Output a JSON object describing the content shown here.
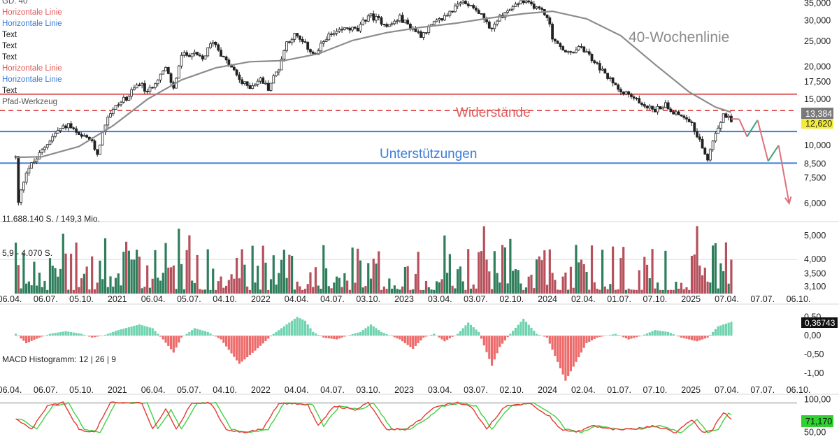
{
  "legend": [
    {
      "text": "GD: 40",
      "color": "#555555"
    },
    {
      "text": "Horizontale Linie",
      "color": "#e05a5a"
    },
    {
      "text": "Horizontale Linie",
      "color": "#3b7dd8"
    },
    {
      "text": "Text",
      "color": "#222222"
    },
    {
      "text": "Text",
      "color": "#222222"
    },
    {
      "text": "Text",
      "color": "#222222"
    },
    {
      "text": "Horizontale Linie",
      "color": "#e05a5a"
    },
    {
      "text": "Horizontale Linie",
      "color": "#3b7dd8"
    },
    {
      "text": "Text",
      "color": "#222222"
    },
    {
      "text": "Pfad-Werkzeug",
      "color": "#555555"
    }
  ],
  "annotations": {
    "ma_label": "40-Wochenlinie",
    "resistance_label": "Widerstände",
    "support_label": "Unterstützungen"
  },
  "colors": {
    "up": "#2e7d5b",
    "down": "#b5505c",
    "ma": "#8c8c8c",
    "resistance": "#e05a5a",
    "support": "#3b7dd8",
    "macd_pos": "#6fd3b0",
    "macd_neg": "#ee6b6b",
    "stoch_k": "#e53935",
    "stoch_d": "#43d143",
    "path_up": "#3aa57a",
    "path_down": "#e0707a",
    "price_badge_ma": "#7a7a7a",
    "price_badge_last": "#f4ea3a",
    "stoch_badge": "#2fd02f"
  },
  "axis_labels": {
    "time": [
      "06.04.",
      "06.07.",
      "05.10.",
      "2021",
      "06.04.",
      "05.07.",
      "04.10.",
      "2022",
      "04.04.",
      "04.07.",
      "03.10.",
      "2023",
      "03.04.",
      "03.07.",
      "02.10.",
      "2024",
      "02.04.",
      "01.07.",
      "07.10.",
      "2025",
      "07.04.",
      "07.07.",
      "06.10."
    ]
  },
  "chart_data": [
    {
      "type": "candlestick",
      "panel": "price",
      "scale": "log",
      "ylim": [
        5500,
        36000
      ],
      "y_ticks": [
        "35,000",
        "30,000",
        "25,000",
        "20,000",
        "17,500",
        "15,000",
        "12,500",
        "10,000",
        "8,500",
        "7,500",
        "6,000"
      ],
      "y_tick_values": [
        35000,
        30000,
        25000,
        20000,
        17500,
        15000,
        12500,
        10000,
        8500,
        7500,
        6000
      ],
      "price_labels": {
        "ma_value": "13,384",
        "last_value": "12,620"
      },
      "horizontal_lines": [
        {
          "kind": "resistance",
          "value": 15700,
          "style": "solid"
        },
        {
          "kind": "resistance",
          "value": 13600,
          "style": "dashed"
        },
        {
          "kind": "support",
          "value": 11300,
          "style": "solid"
        },
        {
          "kind": "support",
          "value": 8550,
          "style": "solid"
        }
      ],
      "close_path": [
        [
          "2020-03-23",
          9000
        ],
        [
          "2020-03-30",
          6000
        ],
        [
          "2020-04-20",
          8000
        ],
        [
          "2020-05-18",
          8900
        ],
        [
          "2020-06-15",
          10200
        ],
        [
          "2020-07-13",
          11400
        ],
        [
          "2020-08-10",
          12000
        ],
        [
          "2020-09-07",
          10800
        ],
        [
          "2020-10-05",
          10600
        ],
        [
          "2020-10-26",
          9300
        ],
        [
          "2020-11-23",
          13000
        ],
        [
          "2020-12-21",
          14400
        ],
        [
          "2021-01-18",
          15500
        ],
        [
          "2021-02-15",
          17400
        ],
        [
          "2021-03-08",
          15800
        ],
        [
          "2021-04-05",
          18200
        ],
        [
          "2021-04-26",
          19600
        ],
        [
          "2021-05-17",
          16400
        ],
        [
          "2021-06-07",
          22000
        ],
        [
          "2021-07-05",
          22500
        ],
        [
          "2021-08-02",
          21300
        ],
        [
          "2021-08-30",
          25200
        ],
        [
          "2021-09-27",
          21500
        ],
        [
          "2021-10-25",
          19200
        ],
        [
          "2021-11-15",
          17300
        ],
        [
          "2021-12-06",
          16800
        ],
        [
          "2022-01-03",
          17900
        ],
        [
          "2022-01-24",
          16600
        ],
        [
          "2022-02-21",
          19800
        ],
        [
          "2022-03-14",
          24800
        ],
        [
          "2022-04-04",
          26400
        ],
        [
          "2022-05-02",
          24200
        ],
        [
          "2022-05-30",
          22000
        ],
        [
          "2022-06-27",
          26000
        ],
        [
          "2022-07-25",
          26800
        ],
        [
          "2022-08-22",
          28200
        ],
        [
          "2022-09-19",
          27500
        ],
        [
          "2022-10-17",
          31500
        ],
        [
          "2022-11-14",
          30200
        ],
        [
          "2022-12-12",
          28700
        ],
        [
          "2023-01-09",
          30800
        ],
        [
          "2023-02-06",
          28400
        ],
        [
          "2023-03-06",
          26500
        ],
        [
          "2023-04-03",
          28700
        ],
        [
          "2023-05-01",
          30500
        ],
        [
          "2023-05-29",
          33000
        ],
        [
          "2023-06-26",
          35500
        ],
        [
          "2023-07-24",
          34200
        ],
        [
          "2023-08-21",
          30400
        ],
        [
          "2023-09-11",
          27900
        ],
        [
          "2023-10-02",
          31000
        ],
        [
          "2023-10-30",
          33200
        ],
        [
          "2023-11-27",
          35500
        ],
        [
          "2023-12-25",
          34500
        ],
        [
          "2024-01-15",
          33400
        ],
        [
          "2024-02-05",
          31200
        ],
        [
          "2024-02-19",
          26000
        ],
        [
          "2024-03-11",
          23500
        ],
        [
          "2024-04-08",
          22300
        ],
        [
          "2024-05-06",
          23800
        ],
        [
          "2024-06-03",
          21400
        ],
        [
          "2024-07-01",
          19200
        ],
        [
          "2024-07-29",
          17300
        ],
        [
          "2024-08-26",
          16100
        ],
        [
          "2024-09-23",
          15100
        ],
        [
          "2024-10-21",
          14300
        ],
        [
          "2024-11-18",
          13600
        ],
        [
          "2024-12-16",
          14400
        ],
        [
          "2025-01-13",
          13200
        ],
        [
          "2025-02-10",
          12900
        ],
        [
          "2025-03-10",
          11000
        ],
        [
          "2025-04-07",
          8700
        ],
        [
          "2025-04-28",
          11300
        ],
        [
          "2025-05-19",
          13000
        ],
        [
          "2025-06-09",
          12620
        ]
      ],
      "ma_path": [
        [
          "2020-03-23",
          9000
        ],
        [
          "2020-06-01",
          9050
        ],
        [
          "2020-09-07",
          9900
        ],
        [
          "2020-12-07",
          11900
        ],
        [
          "2021-03-08",
          15000
        ],
        [
          "2021-06-07",
          17800
        ],
        [
          "2021-09-06",
          19800
        ],
        [
          "2021-12-06",
          20900
        ],
        [
          "2022-03-07",
          21100
        ],
        [
          "2022-06-06",
          22400
        ],
        [
          "2022-09-05",
          25200
        ],
        [
          "2022-12-05",
          27000
        ],
        [
          "2023-03-06",
          28300
        ],
        [
          "2023-06-05",
          29300
        ],
        [
          "2023-09-04",
          30700
        ],
        [
          "2023-12-04",
          31900
        ],
        [
          "2024-02-19",
          32600
        ],
        [
          "2024-05-20",
          30500
        ],
        [
          "2024-08-19",
          26300
        ],
        [
          "2024-11-18",
          20400
        ],
        [
          "2025-02-17",
          16000
        ],
        [
          "2025-04-28",
          14000
        ],
        [
          "2025-06-09",
          13384
        ]
      ],
      "projection_path": [
        {
          "from": [
            "2025-06-09",
            12620
          ],
          "to": [
            "2025-06-30",
            12600
          ],
          "direction": "down"
        },
        {
          "from": [
            "2025-06-30",
            12600
          ],
          "to": [
            "2025-07-21",
            10800
          ],
          "direction": "down"
        },
        {
          "from": [
            "2025-07-21",
            10800
          ],
          "to": [
            "2025-08-18",
            12500
          ],
          "direction": "up"
        },
        {
          "from": [
            "2025-08-18",
            12500
          ],
          "to": [
            "2025-09-15",
            8700
          ],
          "direction": "down"
        },
        {
          "from": [
            "2025-09-15",
            8700
          ],
          "to": [
            "2025-10-13",
            10000
          ],
          "direction": "up"
        },
        {
          "from": [
            "2025-10-13",
            10000
          ],
          "to": [
            "2025-11-10",
            6000
          ],
          "direction": "down"
        }
      ]
    },
    {
      "type": "bar",
      "panel": "volume",
      "scale": "log",
      "title": "11.688.140 S. / 149,3 Mio.",
      "ma_label": "5,9 - 4.070 S.",
      "ylim": [
        2900,
        5600
      ],
      "y_ticks": [
        "5,000",
        "4,000",
        "3,500",
        "3,100"
      ],
      "y_tick_values": [
        5000,
        4000,
        3500,
        3100
      ]
    },
    {
      "type": "bar",
      "panel": "macd",
      "title": "MACD Histogramm: 12 | 26 | 9",
      "ylim": [
        -1.3,
        0.6
      ],
      "y_ticks": [
        "0,50",
        "0,00",
        "-0,50",
        "-1,00"
      ],
      "y_tick_values": [
        0.5,
        0.0,
        -0.5,
        -1.0
      ],
      "last_value_label": "0,36743",
      "path": [
        [
          "2020-03-23",
          0.05
        ],
        [
          "2020-04-20",
          -0.2
        ],
        [
          "2020-05-25",
          -0.05
        ],
        [
          "2020-06-22",
          0.05
        ],
        [
          "2020-08-03",
          0.12
        ],
        [
          "2020-09-14",
          0.05
        ],
        [
          "2020-10-12",
          -0.05
        ],
        [
          "2020-11-09",
          0.0
        ],
        [
          "2020-12-21",
          0.15
        ],
        [
          "2021-02-15",
          0.3
        ],
        [
          "2021-03-22",
          0.2
        ],
        [
          "2021-04-19",
          -0.1
        ],
        [
          "2021-05-17",
          -0.45
        ],
        [
          "2021-06-07",
          -0.05
        ],
        [
          "2021-07-12",
          0.2
        ],
        [
          "2021-08-16",
          0.1
        ],
        [
          "2021-09-20",
          -0.1
        ],
        [
          "2021-11-08",
          -0.75
        ],
        [
          "2021-12-20",
          -0.4
        ],
        [
          "2022-02-07",
          0.05
        ],
        [
          "2022-03-14",
          0.3
        ],
        [
          "2022-04-11",
          0.5
        ],
        [
          "2022-05-02",
          0.4
        ],
        [
          "2022-05-23",
          0.1
        ],
        [
          "2022-06-20",
          -0.05
        ],
        [
          "2022-07-25",
          -0.1
        ],
        [
          "2022-08-22",
          0.0
        ],
        [
          "2022-09-26",
          0.1
        ],
        [
          "2022-10-24",
          0.3
        ],
        [
          "2022-11-21",
          0.1
        ],
        [
          "2023-01-09",
          -0.1
        ],
        [
          "2023-02-13",
          -0.35
        ],
        [
          "2023-03-13",
          -0.05
        ],
        [
          "2023-04-10",
          0.05
        ],
        [
          "2023-05-08",
          -0.15
        ],
        [
          "2023-06-12",
          0.05
        ],
        [
          "2023-07-10",
          0.35
        ],
        [
          "2023-08-07",
          0.1
        ],
        [
          "2023-09-11",
          -0.8
        ],
        [
          "2023-10-02",
          -0.3
        ],
        [
          "2023-10-30",
          0.05
        ],
        [
          "2023-12-04",
          0.45
        ],
        [
          "2024-01-08",
          0.05
        ],
        [
          "2024-02-05",
          -0.05
        ],
        [
          "2024-03-04",
          -0.7
        ],
        [
          "2024-03-25",
          -1.2
        ],
        [
          "2024-04-22",
          -0.7
        ],
        [
          "2024-05-20",
          -0.2
        ],
        [
          "2024-06-17",
          -0.05
        ],
        [
          "2024-08-05",
          0.05
        ],
        [
          "2024-09-09",
          -0.1
        ],
        [
          "2024-10-14",
          0.0
        ],
        [
          "2024-11-18",
          0.15
        ],
        [
          "2024-12-23",
          0.1
        ],
        [
          "2025-01-27",
          -0.05
        ],
        [
          "2025-03-10",
          -0.15
        ],
        [
          "2025-04-07",
          -0.05
        ],
        [
          "2025-05-05",
          0.25
        ],
        [
          "2025-06-09",
          0.37
        ]
      ]
    },
    {
      "type": "line",
      "panel": "stochastic",
      "ylim": [
        40,
        105
      ],
      "y_ticks": [
        "100,00",
        "50,00"
      ],
      "y_tick_values": [
        100,
        50
      ],
      "last_value_label": "71,170",
      "series_k_path": [
        [
          "2020-03-23",
          70
        ],
        [
          "2020-05-04",
          55
        ],
        [
          "2020-06-15",
          90
        ],
        [
          "2020-07-27",
          95
        ],
        [
          "2020-09-07",
          55
        ],
        [
          "2020-10-19",
          50
        ],
        [
          "2020-11-30",
          95
        ],
        [
          "2021-02-22",
          95
        ],
        [
          "2021-03-22",
          55
        ],
        [
          "2021-04-26",
          85
        ],
        [
          "2021-05-24",
          55
        ],
        [
          "2021-07-05",
          95
        ],
        [
          "2021-08-23",
          95
        ],
        [
          "2021-10-04",
          55
        ],
        [
          "2021-11-15",
          50
        ],
        [
          "2022-01-10",
          55
        ],
        [
          "2022-02-21",
          95
        ],
        [
          "2022-05-09",
          92
        ],
        [
          "2022-06-06",
          60
        ],
        [
          "2022-07-18",
          90
        ],
        [
          "2022-09-12",
          85
        ],
        [
          "2022-10-17",
          95
        ],
        [
          "2022-12-05",
          55
        ],
        [
          "2023-01-23",
          55
        ],
        [
          "2023-03-06",
          70
        ],
        [
          "2023-04-17",
          90
        ],
        [
          "2023-06-12",
          95
        ],
        [
          "2023-07-17",
          90
        ],
        [
          "2023-08-28",
          55
        ],
        [
          "2023-10-16",
          90
        ],
        [
          "2023-12-18",
          95
        ],
        [
          "2024-02-12",
          75
        ],
        [
          "2024-03-11",
          55
        ],
        [
          "2024-04-22",
          50
        ],
        [
          "2024-06-03",
          60
        ],
        [
          "2024-07-29",
          55
        ],
        [
          "2024-09-23",
          55
        ],
        [
          "2024-11-18",
          60
        ],
        [
          "2025-01-13",
          50
        ],
        [
          "2025-02-24",
          70
        ],
        [
          "2025-03-24",
          50
        ],
        [
          "2025-04-21",
          55
        ],
        [
          "2025-05-19",
          80
        ],
        [
          "2025-06-09",
          71
        ]
      ]
    }
  ]
}
